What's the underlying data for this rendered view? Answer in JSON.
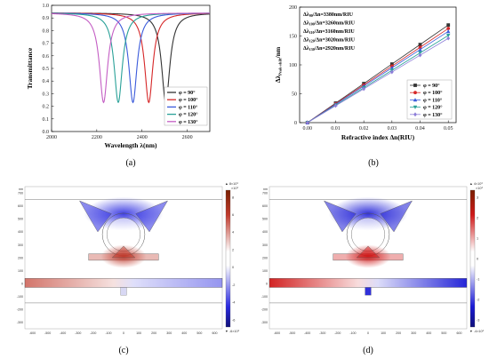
{
  "chart_data": [
    {
      "type": "line",
      "panel": "a",
      "xlabel": "Wavelength λ(nm)",
      "ylabel": "Transmittance",
      "xlim": [
        2000,
        2700
      ],
      "ylim": [
        0,
        1.0
      ],
      "xticks": [
        "2000",
        "2200",
        "2400",
        "2600"
      ],
      "yticks": [
        "0.0",
        "0.1",
        "0.2",
        "0.3",
        "0.4",
        "0.5",
        "0.6",
        "0.7",
        "0.8",
        "0.9",
        "1.0"
      ],
      "legend": "bottom-right",
      "series": [
        {
          "name": "φ = 90°",
          "color": "#333333",
          "dip_x": 2505,
          "dip_y": 0.23
        },
        {
          "name": "φ = 100°",
          "color": "#d62728",
          "dip_x": 2430,
          "dip_y": 0.23
        },
        {
          "name": "φ = 110°",
          "color": "#3b5bdb",
          "dip_x": 2360,
          "dip_y": 0.23
        },
        {
          "name": "φ = 120°",
          "color": "#2aa198",
          "dip_x": 2295,
          "dip_y": 0.23
        },
        {
          "name": "φ = 130°",
          "color": "#c45ec4",
          "dip_x": 2230,
          "dip_y": 0.23
        }
      ],
      "plateau": 0.94
    },
    {
      "type": "line",
      "panel": "b",
      "xlabel": "Refractive index Δn(RIU)",
      "ylabel": "Δλ",
      "ylabel_sub": "Peak-shift",
      "ylabel_unit": "/nm",
      "xlim": [
        0,
        0.05
      ],
      "ylim": [
        0,
        200
      ],
      "xticks": [
        "0.00",
        "0.01",
        "0.02",
        "0.03",
        "0.04",
        "0.05"
      ],
      "yticks": [
        "0",
        "50",
        "100",
        "150",
        "200"
      ],
      "legend": "bottom-right",
      "x": [
        0.0,
        0.01,
        0.02,
        0.03,
        0.04,
        0.05
      ],
      "series": [
        {
          "name": "φ = 90°",
          "color": "#333333",
          "marker": "square",
          "values": [
            0,
            33.8,
            67.6,
            101.4,
            135.2,
            169.0
          ]
        },
        {
          "name": "φ = 100°",
          "color": "#d62728",
          "marker": "circle",
          "values": [
            0,
            32.6,
            65.2,
            97.8,
            130.4,
            163.0
          ]
        },
        {
          "name": "φ = 110°",
          "color": "#3b5bdb",
          "marker": "triangle",
          "values": [
            0,
            31.6,
            63.2,
            94.8,
            126.4,
            158.0
          ]
        },
        {
          "name": "φ = 120°",
          "color": "#2aa198",
          "marker": "triangle-down",
          "values": [
            0,
            30.2,
            60.4,
            90.6,
            120.8,
            151.0
          ]
        },
        {
          "name": "φ = 130°",
          "color": "#8d7ed8",
          "marker": "diamond",
          "values": [
            0,
            29.2,
            58.4,
            87.6,
            116.8,
            146.0
          ]
        }
      ],
      "annotations": [
        {
          "label": "Δλ",
          "sub": "90",
          "text": "/Δn=3380nm/RIU"
        },
        {
          "label": "Δλ",
          "sub": "100",
          "text": "/Δn=3260nm/RIU"
        },
        {
          "label": "Δλ",
          "sub": "110",
          "text": "/Δn=3160nm/RIU"
        },
        {
          "label": "Δλ",
          "sub": "120",
          "text": "/Δn=3020nm/RIU"
        },
        {
          "label": "Δλ",
          "sub": "130",
          "text": "/Δn=2920nm/RIU"
        }
      ]
    },
    {
      "type": "heatmap",
      "panel": "c",
      "xunit": "nm",
      "xticks": [
        "-600",
        "-500",
        "-400",
        "-300",
        "-200",
        "-100",
        "0",
        "100",
        "200",
        "300",
        "400",
        "500",
        "600"
      ],
      "yticks": [
        "700",
        "600",
        "500",
        "400",
        "300",
        "200",
        "100",
        "0",
        "-100",
        "-200",
        "-300"
      ],
      "colorbar_top": "▲ 8×10³",
      "colorbar_exp": "×10³",
      "colorbar_ticks": [
        "8",
        "6",
        "4",
        "2",
        "0",
        "-2",
        "-4",
        "-6"
      ],
      "colorbar_bottom": "▼ -6×10³",
      "colors": {
        "positive": "#c0392b",
        "negative": "#2a2ae0"
      }
    },
    {
      "type": "heatmap",
      "panel": "d",
      "xunit": "nm",
      "xticks": [
        "-600",
        "-500",
        "-400",
        "-300",
        "-200",
        "-100",
        "0",
        "100",
        "200",
        "300",
        "400",
        "500",
        "600"
      ],
      "yticks": [
        "700",
        "600",
        "500",
        "400",
        "300",
        "200",
        "100",
        "0",
        "-100",
        "-200",
        "-300"
      ],
      "colorbar_top": "▲ 4×10³",
      "colorbar_exp": "×10³",
      "colorbar_ticks": [
        "3",
        "2",
        "1",
        "0",
        "-1",
        "-2",
        "-3"
      ],
      "colorbar_bottom": "▼ -4×10³",
      "colors": {
        "positive": "#d01818",
        "negative": "#1a1ad6"
      }
    }
  ],
  "captions": {
    "a": "(a)",
    "b": "(b)",
    "c": "(c)",
    "d": "(d)"
  }
}
